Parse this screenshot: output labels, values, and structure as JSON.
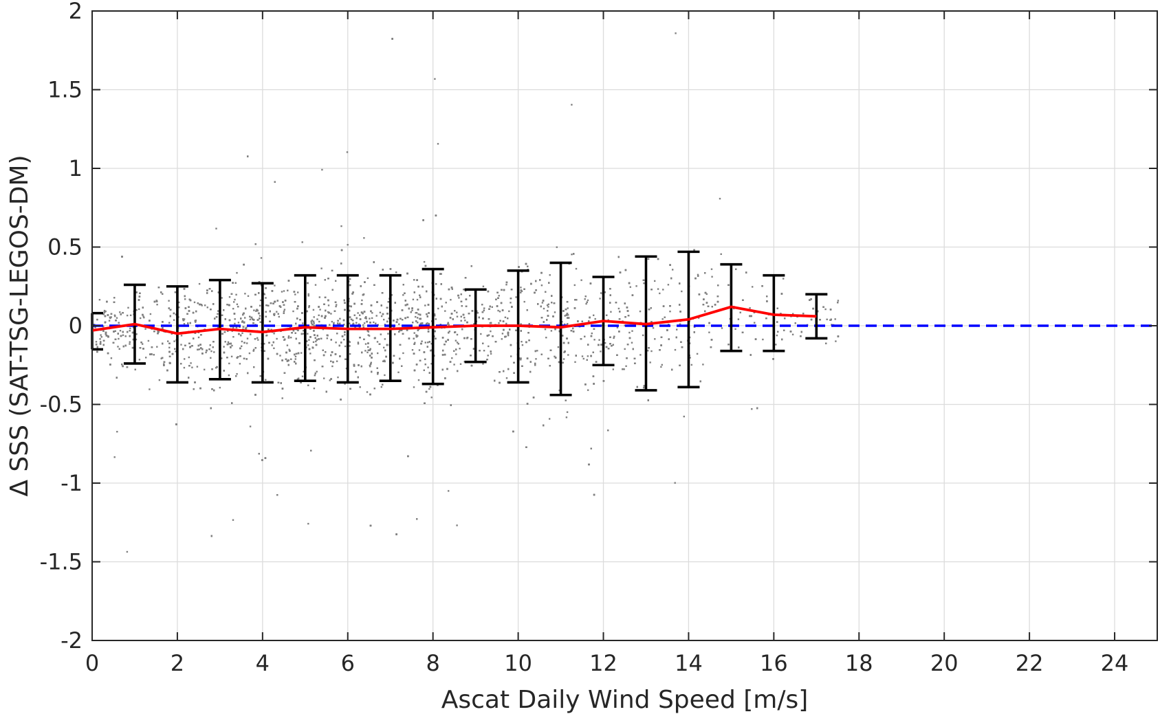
{
  "chart_data": {
    "type": "scatter",
    "xlabel": "Ascat Daily Wind Speed [m/s]",
    "ylabel": "Δ SSS (SAT-TSG-LEGOS-DM)",
    "xlim": [
      0,
      25
    ],
    "ylim": [
      -2,
      2
    ],
    "x_ticks": [
      0,
      2,
      4,
      6,
      8,
      10,
      12,
      14,
      16,
      18,
      20,
      22,
      24
    ],
    "x_tick_labels": [
      "0",
      "2",
      "4",
      "6",
      "8",
      "10",
      "12",
      "14",
      "16",
      "18",
      "20",
      "22",
      "24"
    ],
    "y_ticks": [
      2,
      1.5,
      1,
      0.5,
      0,
      -0.5,
      -1,
      -1.5,
      -2
    ],
    "y_tick_labels": [
      "2",
      "1.5",
      "1",
      "0.5",
      "0",
      "-0.5",
      "-1",
      "-1.5",
      "-2"
    ],
    "grid": true,
    "colors": {
      "scatter": "#808080",
      "mean_line": "#ff0000",
      "zero_line": "#0000ff",
      "error_bars": "#000000"
    },
    "zero_reference_line": {
      "y": 0,
      "style": "dashed"
    },
    "binned_mean": {
      "x": [
        0,
        1,
        2,
        3,
        4,
        5,
        6,
        7,
        8,
        9,
        10,
        11,
        12,
        13,
        14,
        15,
        16,
        17
      ],
      "y": [
        -0.03,
        0.01,
        -0.05,
        -0.02,
        -0.04,
        -0.01,
        -0.02,
        -0.02,
        -0.01,
        0.0,
        0.0,
        -0.01,
        0.03,
        0.01,
        0.04,
        0.12,
        0.07,
        0.06
      ]
    },
    "error_bars": {
      "x": [
        0,
        1,
        2,
        3,
        4,
        5,
        6,
        7,
        8,
        9,
        10,
        11,
        12,
        13,
        14,
        15,
        16,
        17
      ],
      "upper": [
        0.08,
        0.26,
        0.25,
        0.29,
        0.27,
        0.32,
        0.32,
        0.32,
        0.36,
        0.23,
        0.35,
        0.4,
        0.31,
        0.44,
        0.47,
        0.39,
        0.32,
        0.2
      ],
      "lower": [
        -0.15,
        -0.24,
        -0.36,
        -0.34,
        -0.36,
        -0.35,
        -0.36,
        -0.35,
        -0.37,
        -0.23,
        -0.36,
        -0.44,
        -0.25,
        -0.41,
        -0.39,
        -0.16,
        -0.16,
        -0.08
      ]
    },
    "scatter_cloud": {
      "x_range": [
        0,
        17.5
      ],
      "center_spread_by_bin": [
        {
          "x": 0,
          "mean": -0.03,
          "sd": 0.12
        },
        {
          "x": 1,
          "mean": 0.01,
          "sd": 0.25
        },
        {
          "x": 2,
          "mean": -0.05,
          "sd": 0.3
        },
        {
          "x": 3,
          "mean": -0.02,
          "sd": 0.31
        },
        {
          "x": 4,
          "mean": -0.04,
          "sd": 0.31
        },
        {
          "x": 5,
          "mean": -0.01,
          "sd": 0.33
        },
        {
          "x": 6,
          "mean": -0.02,
          "sd": 0.34
        },
        {
          "x": 7,
          "mean": -0.02,
          "sd": 0.33
        },
        {
          "x": 8,
          "mean": -0.01,
          "sd": 0.36
        },
        {
          "x": 9,
          "mean": 0.0,
          "sd": 0.23
        },
        {
          "x": 10,
          "mean": 0.0,
          "sd": 0.35
        },
        {
          "x": 11,
          "mean": -0.01,
          "sd": 0.42
        },
        {
          "x": 12,
          "mean": 0.03,
          "sd": 0.28
        },
        {
          "x": 13,
          "mean": 0.01,
          "sd": 0.43
        },
        {
          "x": 14,
          "mean": 0.04,
          "sd": 0.43
        },
        {
          "x": 15,
          "mean": 0.12,
          "sd": 0.27
        },
        {
          "x": 16,
          "mean": 0.07,
          "sd": 0.24
        },
        {
          "x": 17,
          "mean": 0.06,
          "sd": 0.14
        }
      ]
    }
  }
}
